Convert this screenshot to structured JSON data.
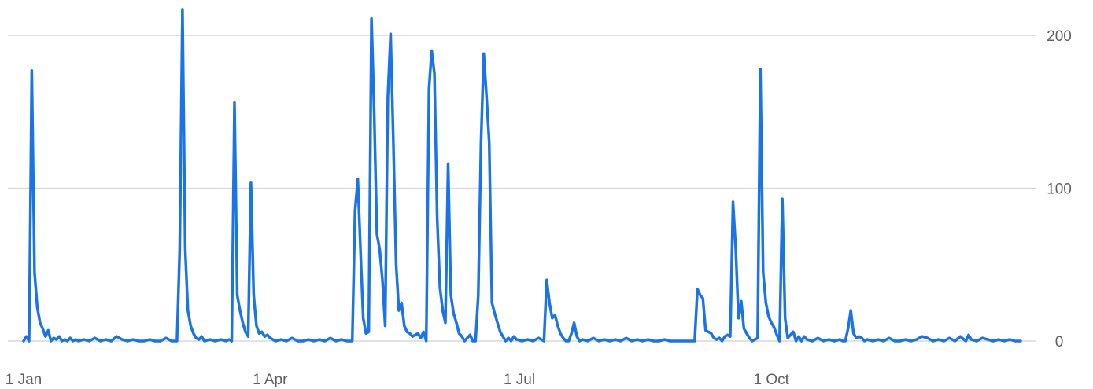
{
  "chart_data": {
    "type": "line",
    "title": "",
    "xlabel": "",
    "ylabel": "",
    "x_tick_labels": [
      {
        "day": 0,
        "label": "1 Jan"
      },
      {
        "day": 90,
        "label": "1 Apr"
      },
      {
        "day": 181,
        "label": "1 Jul"
      },
      {
        "day": 273,
        "label": "1 Oct"
      }
    ],
    "y_ticks": [
      0,
      100,
      200
    ],
    "ylim": [
      0,
      200
    ],
    "grid": true,
    "y_axis_side": "right",
    "series": [
      {
        "color": "#1a73e8",
        "points": [
          [
            0,
            0
          ],
          [
            1,
            3
          ],
          [
            2,
            0
          ],
          [
            3,
            177
          ],
          [
            4,
            45
          ],
          [
            5,
            22
          ],
          [
            6,
            12
          ],
          [
            7,
            8
          ],
          [
            8,
            3
          ],
          [
            9,
            7
          ],
          [
            10,
            0
          ],
          [
            11,
            2
          ],
          [
            12,
            1
          ],
          [
            13,
            3
          ],
          [
            14,
            0
          ],
          [
            15,
            1
          ],
          [
            16,
            0
          ],
          [
            17,
            2
          ],
          [
            18,
            0
          ],
          [
            19,
            1
          ],
          [
            20,
            0
          ],
          [
            22,
            1
          ],
          [
            24,
            0
          ],
          [
            26,
            2
          ],
          [
            28,
            0
          ],
          [
            30,
            1
          ],
          [
            32,
            0
          ],
          [
            34,
            3
          ],
          [
            36,
            1
          ],
          [
            38,
            0
          ],
          [
            40,
            1
          ],
          [
            42,
            0
          ],
          [
            44,
            0
          ],
          [
            46,
            1
          ],
          [
            48,
            0
          ],
          [
            50,
            0
          ],
          [
            52,
            2
          ],
          [
            54,
            0
          ],
          [
            55,
            0
          ],
          [
            56,
            0
          ],
          [
            57,
            60
          ],
          [
            58,
            217
          ],
          [
            59,
            60
          ],
          [
            60,
            20
          ],
          [
            61,
            10
          ],
          [
            62,
            5
          ],
          [
            63,
            2
          ],
          [
            64,
            1
          ],
          [
            65,
            3
          ],
          [
            66,
            0
          ],
          [
            68,
            1
          ],
          [
            70,
            0
          ],
          [
            72,
            1
          ],
          [
            74,
            0
          ],
          [
            75,
            1
          ],
          [
            76,
            0
          ],
          [
            77,
            156
          ],
          [
            78,
            30
          ],
          [
            79,
            20
          ],
          [
            80,
            12
          ],
          [
            81,
            6
          ],
          [
            82,
            3
          ],
          [
            83,
            104
          ],
          [
            84,
            30
          ],
          [
            85,
            10
          ],
          [
            86,
            5
          ],
          [
            87,
            6
          ],
          [
            88,
            3
          ],
          [
            89,
            4
          ],
          [
            90,
            2
          ],
          [
            92,
            0
          ],
          [
            94,
            1
          ],
          [
            96,
            0
          ],
          [
            98,
            2
          ],
          [
            100,
            0
          ],
          [
            102,
            0
          ],
          [
            104,
            1
          ],
          [
            106,
            0
          ],
          [
            108,
            1
          ],
          [
            110,
            0
          ],
          [
            112,
            2
          ],
          [
            114,
            0
          ],
          [
            116,
            1
          ],
          [
            118,
            0
          ],
          [
            119,
            0
          ],
          [
            120,
            0
          ],
          [
            121,
            85
          ],
          [
            122,
            106
          ],
          [
            123,
            60
          ],
          [
            124,
            15
          ],
          [
            125,
            5
          ],
          [
            126,
            6
          ],
          [
            127,
            211
          ],
          [
            128,
            150
          ],
          [
            129,
            70
          ],
          [
            130,
            60
          ],
          [
            131,
            40
          ],
          [
            132,
            10
          ],
          [
            133,
            160
          ],
          [
            134,
            201
          ],
          [
            135,
            130
          ],
          [
            136,
            50
          ],
          [
            137,
            20
          ],
          [
            138,
            25
          ],
          [
            139,
            10
          ],
          [
            140,
            6
          ],
          [
            141,
            5
          ],
          [
            142,
            3
          ],
          [
            143,
            4
          ],
          [
            144,
            5
          ],
          [
            145,
            2
          ],
          [
            146,
            6
          ],
          [
            147,
            0
          ],
          [
            148,
            165
          ],
          [
            149,
            190
          ],
          [
            150,
            175
          ],
          [
            151,
            80
          ],
          [
            152,
            35
          ],
          [
            153,
            20
          ],
          [
            154,
            12
          ],
          [
            155,
            116
          ],
          [
            156,
            30
          ],
          [
            157,
            18
          ],
          [
            158,
            12
          ],
          [
            159,
            5
          ],
          [
            160,
            3
          ],
          [
            161,
            0
          ],
          [
            162,
            2
          ],
          [
            163,
            4
          ],
          [
            164,
            0
          ],
          [
            165,
            0
          ],
          [
            166,
            30
          ],
          [
            167,
            130
          ],
          [
            168,
            188
          ],
          [
            169,
            160
          ],
          [
            170,
            130
          ],
          [
            171,
            25
          ],
          [
            172,
            18
          ],
          [
            173,
            12
          ],
          [
            174,
            6
          ],
          [
            175,
            3
          ],
          [
            176,
            0
          ],
          [
            177,
            2
          ],
          [
            178,
            0
          ],
          [
            179,
            3
          ],
          [
            180,
            1
          ],
          [
            182,
            0
          ],
          [
            184,
            1
          ],
          [
            186,
            0
          ],
          [
            188,
            2
          ],
          [
            190,
            0
          ],
          [
            191,
            40
          ],
          [
            192,
            25
          ],
          [
            193,
            15
          ],
          [
            194,
            17
          ],
          [
            195,
            10
          ],
          [
            196,
            5
          ],
          [
            197,
            2
          ],
          [
            198,
            0
          ],
          [
            199,
            0
          ],
          [
            200,
            5
          ],
          [
            201,
            12
          ],
          [
            202,
            3
          ],
          [
            203,
            0
          ],
          [
            204,
            1
          ],
          [
            206,
            0
          ],
          [
            208,
            2
          ],
          [
            210,
            0
          ],
          [
            212,
            1
          ],
          [
            214,
            0
          ],
          [
            216,
            1
          ],
          [
            218,
            0
          ],
          [
            220,
            2
          ],
          [
            222,
            0
          ],
          [
            224,
            1
          ],
          [
            226,
            0
          ],
          [
            228,
            1
          ],
          [
            230,
            0
          ],
          [
            232,
            0
          ],
          [
            234,
            1
          ],
          [
            236,
            0
          ],
          [
            238,
            0
          ],
          [
            240,
            0
          ],
          [
            242,
            0
          ],
          [
            244,
            0
          ],
          [
            245,
            0
          ],
          [
            246,
            34
          ],
          [
            247,
            30
          ],
          [
            248,
            28
          ],
          [
            249,
            7
          ],
          [
            250,
            6
          ],
          [
            251,
            5
          ],
          [
            252,
            2
          ],
          [
            253,
            1
          ],
          [
            254,
            2
          ],
          [
            255,
            0
          ],
          [
            256,
            3
          ],
          [
            257,
            4
          ],
          [
            258,
            3
          ],
          [
            259,
            91
          ],
          [
            260,
            60
          ],
          [
            261,
            15
          ],
          [
            262,
            26
          ],
          [
            263,
            8
          ],
          [
            264,
            5
          ],
          [
            265,
            2
          ],
          [
            266,
            0
          ],
          [
            267,
            1
          ],
          [
            268,
            2
          ],
          [
            269,
            178
          ],
          [
            270,
            45
          ],
          [
            271,
            25
          ],
          [
            272,
            16
          ],
          [
            273,
            12
          ],
          [
            274,
            9
          ],
          [
            275,
            4
          ],
          [
            276,
            0
          ],
          [
            277,
            93
          ],
          [
            278,
            15
          ],
          [
            279,
            2
          ],
          [
            280,
            4
          ],
          [
            281,
            6
          ],
          [
            282,
            0
          ],
          [
            283,
            3
          ],
          [
            284,
            0
          ],
          [
            285,
            3
          ],
          [
            286,
            1
          ],
          [
            288,
            0
          ],
          [
            290,
            2
          ],
          [
            292,
            0
          ],
          [
            294,
            1
          ],
          [
            296,
            0
          ],
          [
            298,
            1
          ],
          [
            299,
            0
          ],
          [
            300,
            0
          ],
          [
            301,
            8
          ],
          [
            302,
            20
          ],
          [
            303,
            5
          ],
          [
            304,
            2
          ],
          [
            305,
            3
          ],
          [
            306,
            2
          ],
          [
            307,
            0
          ],
          [
            308,
            1
          ],
          [
            310,
            0
          ],
          [
            312,
            1
          ],
          [
            314,
            0
          ],
          [
            316,
            2
          ],
          [
            318,
            0
          ],
          [
            320,
            0
          ],
          [
            322,
            1
          ],
          [
            324,
            0
          ],
          [
            326,
            1
          ],
          [
            328,
            3
          ],
          [
            330,
            2
          ],
          [
            332,
            0
          ],
          [
            334,
            1
          ],
          [
            336,
            0
          ],
          [
            338,
            2
          ],
          [
            340,
            0
          ],
          [
            342,
            3
          ],
          [
            344,
            0
          ],
          [
            345,
            4
          ],
          [
            346,
            1
          ],
          [
            348,
            0
          ],
          [
            350,
            2
          ],
          [
            352,
            1
          ],
          [
            354,
            0
          ],
          [
            356,
            1
          ],
          [
            358,
            0
          ],
          [
            360,
            1
          ],
          [
            362,
            0
          ],
          [
            364,
            0
          ]
        ]
      }
    ]
  }
}
